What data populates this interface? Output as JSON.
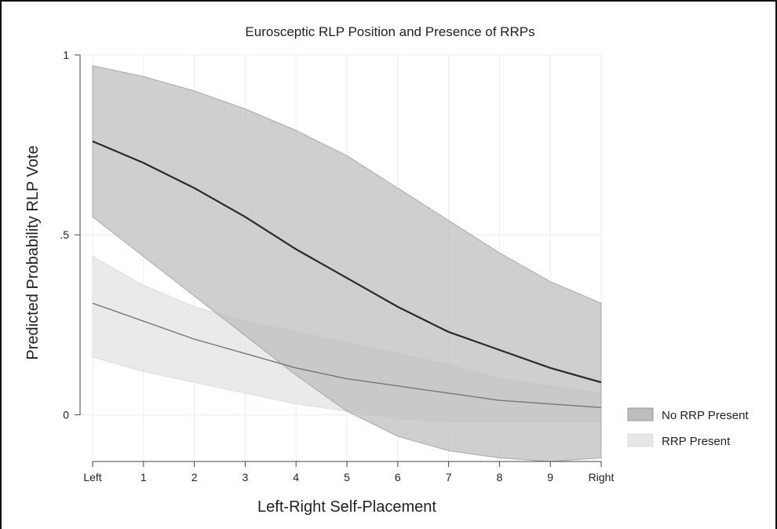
{
  "chart_data": {
    "type": "line",
    "title": "Eurosceptic RLP Position and Presence of RRPs",
    "xlabel": "Left-Right Self-Placement",
    "ylabel": "Predicted Probability RLP Vote",
    "x": [
      0,
      1,
      2,
      3,
      4,
      5,
      6,
      7,
      8,
      9,
      10
    ],
    "x_tick_labels": [
      "Left",
      "1",
      "2",
      "3",
      "4",
      "5",
      "6",
      "7",
      "8",
      "9",
      "Right"
    ],
    "y_ticks": [
      0,
      0.5,
      1
    ],
    "y_tick_labels": [
      "0",
      ".5",
      "1"
    ],
    "xlim": [
      0,
      10
    ],
    "ylim": [
      -0.13,
      1.0
    ],
    "grid": true,
    "legend_position": "right",
    "series": [
      {
        "name": "No RRP Present",
        "y": [
          0.76,
          0.7,
          0.63,
          0.55,
          0.46,
          0.38,
          0.3,
          0.23,
          0.18,
          0.13,
          0.09
        ],
        "lower": [
          0.55,
          0.44,
          0.33,
          0.22,
          0.11,
          0.01,
          -0.06,
          -0.1,
          -0.12,
          -0.13,
          -0.12
        ],
        "upper": [
          0.97,
          0.94,
          0.9,
          0.85,
          0.79,
          0.72,
          0.63,
          0.54,
          0.45,
          0.37,
          0.31
        ],
        "line_color": "#2a2a2a",
        "fill_color": "#bdbdbd"
      },
      {
        "name": "RRP Present",
        "y": [
          0.31,
          0.26,
          0.21,
          0.17,
          0.13,
          0.1,
          0.08,
          0.06,
          0.04,
          0.03,
          0.02
        ],
        "lower": [
          0.16,
          0.12,
          0.09,
          0.06,
          0.03,
          0.01,
          -0.01,
          -0.02,
          -0.02,
          -0.02,
          -0.02
        ],
        "upper": [
          0.44,
          0.36,
          0.3,
          0.26,
          0.23,
          0.2,
          0.17,
          0.14,
          0.1,
          0.08,
          0.06
        ],
        "line_color": "#777777",
        "fill_color": "#e6e6e6"
      }
    ]
  }
}
